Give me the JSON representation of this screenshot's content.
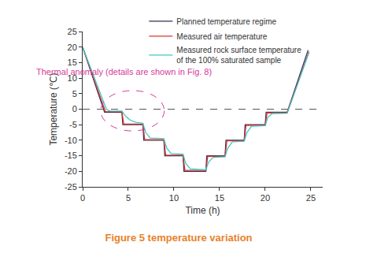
{
  "chart_data": {
    "type": "line",
    "title": "Figure 5 temperature variation",
    "x_label": "Time (h)",
    "y_label": "Temperature (℃)",
    "xlim": [
      0,
      26.3
    ],
    "xticks": [
      0,
      5,
      10,
      15,
      20,
      25
    ],
    "ylim": [
      -25,
      25
    ],
    "yticks": [
      -25,
      -20,
      -15,
      -10,
      -5,
      0,
      5,
      10,
      15,
      20,
      25
    ],
    "grid": false,
    "legend": "top",
    "reference_lines": [
      {
        "axis": "y",
        "value": 0,
        "line_style": "dashed"
      }
    ],
    "annotations": [
      {
        "text": "Thermal anomaly (details are shown in Fig. 8)",
        "color": "#d63a9a"
      }
    ],
    "series": [
      {
        "name": "Planned temperature regime",
        "color": "#3b2a4f",
        "line_style": "solid",
        "x": [
          0,
          2.4,
          4.3,
          4.4,
          6.6,
          6.7,
          8.9,
          9.0,
          11.0,
          11.1,
          13.5,
          13.6,
          15.6,
          15.7,
          17.7,
          17.8,
          20.0,
          20.1,
          22.4,
          24.7
        ],
        "values": [
          20,
          -1,
          -1,
          -5,
          -5,
          -10,
          -10,
          -15,
          -15,
          -20,
          -20,
          -15,
          -15,
          -10,
          -10,
          -5,
          -5,
          -1,
          -1,
          19
        ]
      },
      {
        "name": "Measured air temperature",
        "color": "#d9342b",
        "line_style": "solid",
        "x": [
          0,
          2.5,
          4.3,
          4.5,
          6.6,
          6.8,
          8.9,
          9.1,
          11.0,
          11.2,
          13.5,
          13.7,
          15.6,
          15.8,
          17.7,
          17.9,
          20.0,
          20.2,
          22.4,
          24.8
        ],
        "values": [
          20,
          -0.8,
          -0.8,
          -4.8,
          -4.8,
          -9.8,
          -9.8,
          -14.8,
          -14.8,
          -19.7,
          -19.7,
          -15.2,
          -15.2,
          -10.2,
          -10.2,
          -5.2,
          -5.2,
          -1.2,
          -1.2,
          18.5
        ]
      },
      {
        "name": "Measured rock surface temperature\nof the 100% saturated sample",
        "color": "#3cc8c8",
        "line_style": "solid",
        "x": [
          0,
          2.6,
          3.0,
          4.3,
          4.5,
          4.8,
          5.2,
          5.8,
          6.6,
          6.9,
          7.4,
          8.9,
          9.2,
          9.7,
          11.0,
          11.3,
          11.8,
          13.5,
          13.8,
          14.3,
          15.6,
          15.9,
          16.4,
          17.7,
          18.0,
          18.5,
          20.0,
          20.3,
          20.8,
          22.4,
          24.8
        ],
        "values": [
          20,
          0,
          -0.6,
          -0.6,
          -1.5,
          -2.5,
          -3.5,
          -4.2,
          -4.5,
          -7.5,
          -9.3,
          -9.5,
          -12.5,
          -14.3,
          -14.5,
          -17.5,
          -19.2,
          -19.5,
          -17,
          -15.5,
          -15.3,
          -12.5,
          -10.5,
          -10.3,
          -7.5,
          -5.5,
          -5.3,
          -2.5,
          -1.4,
          -1.3,
          18.3
        ]
      }
    ]
  }
}
